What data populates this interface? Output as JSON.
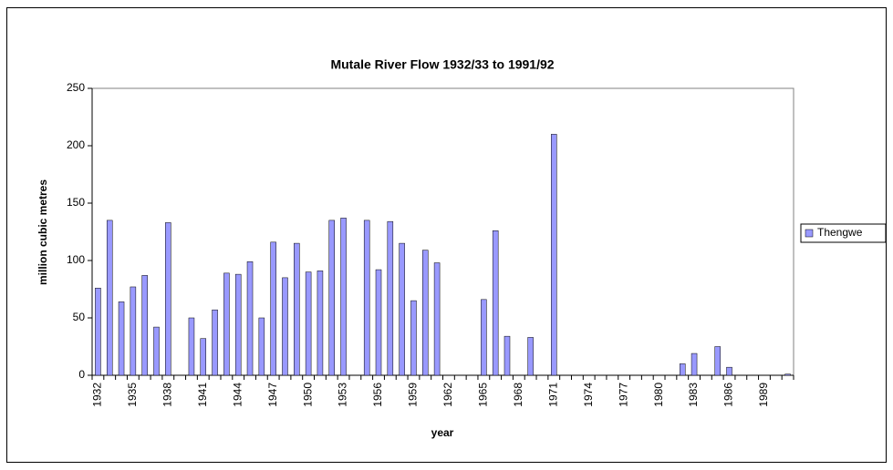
{
  "chart_data": {
    "type": "bar",
    "title": "Mutale River Flow 1932/33 to 1991/92",
    "x_label": "year",
    "y_label": "million cubic metres",
    "categories": [
      "1932",
      null,
      null,
      "1935",
      null,
      null,
      "1938",
      null,
      null,
      "1941",
      null,
      null,
      "1944",
      null,
      null,
      "1947",
      null,
      null,
      "1950",
      null,
      null,
      "1953",
      null,
      null,
      "1956",
      null,
      null,
      "1959",
      null,
      null,
      "1962",
      null,
      null,
      "1965",
      null,
      null,
      "1968",
      null,
      null,
      "1971",
      null,
      null,
      "1974",
      null,
      null,
      "1977",
      null,
      null,
      "1980",
      null,
      null,
      "1983",
      null,
      null,
      "1986",
      null,
      null,
      "1989",
      null,
      null
    ],
    "series": [
      {
        "name": "Thengwe",
        "color": "#9999ff",
        "values": [
          76,
          135,
          64,
          77,
          87,
          42,
          133,
          0,
          50,
          32,
          57,
          89,
          88,
          99,
          50,
          116,
          85,
          115,
          90,
          91,
          135,
          137,
          0,
          135,
          92,
          134,
          115,
          65,
          109,
          98,
          0,
          0,
          0,
          66,
          126,
          34,
          0,
          33,
          0,
          210,
          0,
          0,
          0,
          0,
          0,
          0,
          0,
          0,
          0,
          0,
          10,
          19,
          0,
          25,
          7,
          0,
          0,
          0,
          0,
          1
        ]
      }
    ],
    "ylim": [
      0,
      250
    ],
    "yticks": [
      0,
      50,
      100,
      150,
      200,
      250
    ],
    "legend": "right"
  }
}
